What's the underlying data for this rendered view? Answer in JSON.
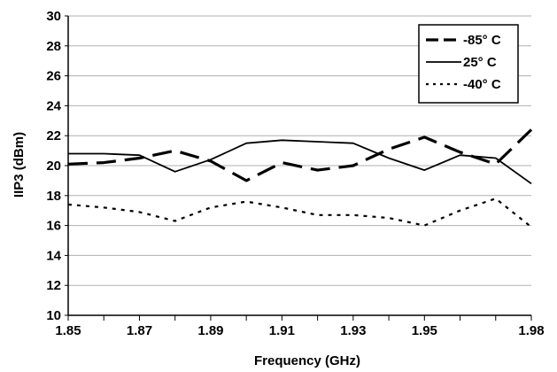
{
  "chart_data": {
    "type": "line",
    "title": "",
    "xlabel": "Frequency (GHz)",
    "ylabel": "IIP3 (dBm)",
    "xlim": [
      1.85,
      1.98
    ],
    "ylim": [
      10,
      30
    ],
    "x_ticks": [
      1.85,
      1.87,
      1.89,
      1.91,
      1.93,
      1.95,
      1.98
    ],
    "x_tick_labels": [
      "1.85",
      "1.87",
      "1.89",
      "1.91",
      "1.93",
      "1.95",
      "1.98"
    ],
    "y_ticks": [
      10,
      12,
      14,
      16,
      18,
      20,
      22,
      24,
      26,
      28,
      30
    ],
    "y_tick_labels": [
      "10",
      "12",
      "14",
      "16",
      "18",
      "20",
      "22",
      "24",
      "26",
      "28",
      "30"
    ],
    "grid": "horizontal",
    "legend_position": "top-right",
    "x": [
      1.85,
      1.86,
      1.87,
      1.88,
      1.89,
      1.9,
      1.91,
      1.92,
      1.93,
      1.94,
      1.95,
      1.96,
      1.97,
      1.98
    ],
    "series": [
      {
        "name": "-85° C",
        "style": "long-dash",
        "color": "#000000",
        "values": [
          20.1,
          20.2,
          20.5,
          21.0,
          20.3,
          19.0,
          20.2,
          19.7,
          20.0,
          21.1,
          21.9,
          20.9,
          20.1,
          22.4
        ]
      },
      {
        "name": "25° C",
        "style": "solid",
        "color": "#000000",
        "values": [
          20.8,
          20.8,
          20.7,
          19.6,
          20.4,
          21.5,
          21.7,
          21.6,
          21.5,
          20.5,
          19.7,
          20.7,
          20.5,
          18.8
        ]
      },
      {
        "name": "-40° C",
        "style": "dotted",
        "color": "#000000",
        "values": [
          17.4,
          17.2,
          16.9,
          16.3,
          17.2,
          17.6,
          17.2,
          16.7,
          16.7,
          16.5,
          16.0,
          17.0,
          17.8,
          15.9
        ]
      }
    ]
  }
}
